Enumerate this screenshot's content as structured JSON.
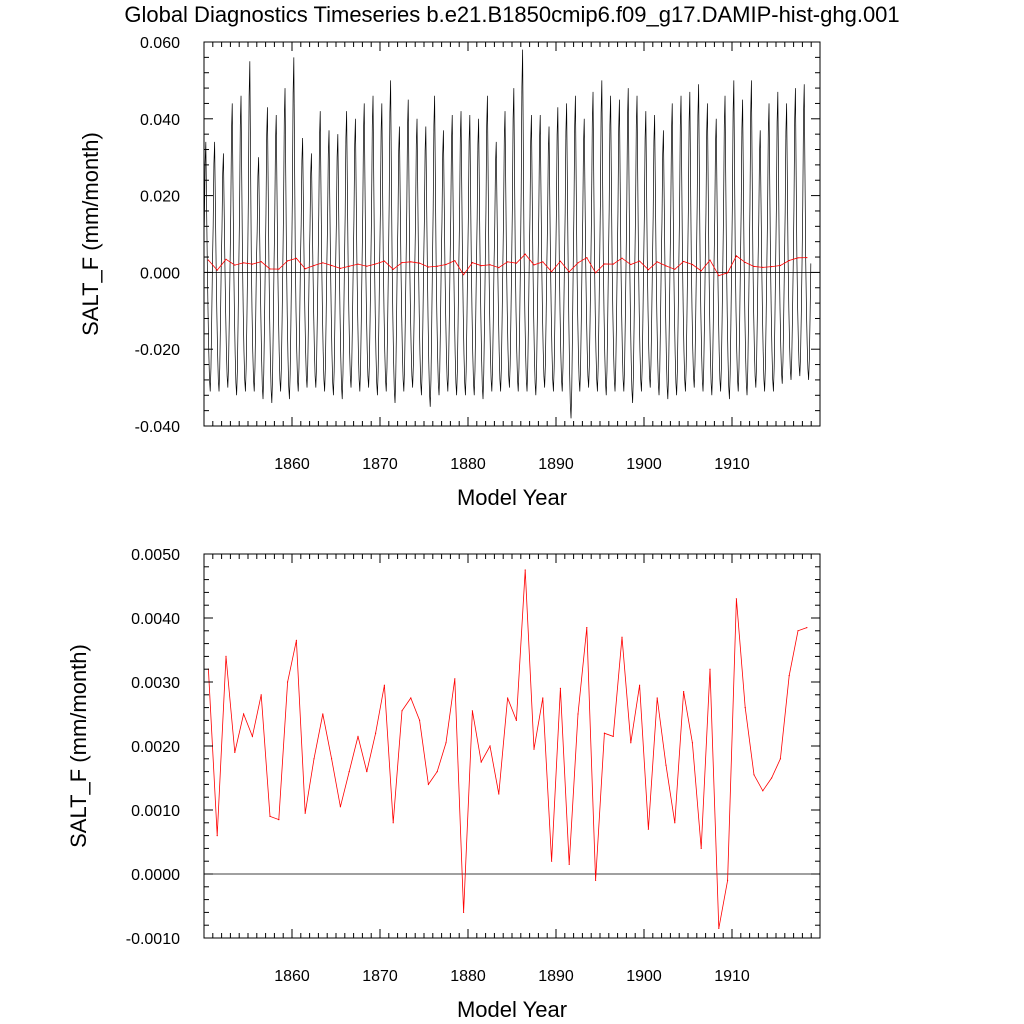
{
  "title": "Global Diagnostics Timeseries b.e21.B1850cmip6.f09_g17.DAMIP-hist-ghg.001",
  "chart_data": [
    {
      "type": "line",
      "xlabel": "Model Year",
      "ylabel": "SALT_F (mm/month)",
      "xlim": [
        1850,
        1920
      ],
      "ylim": [
        -0.04,
        0.06
      ],
      "xticks": [
        "1860",
        "1870",
        "1880",
        "1890",
        "1900",
        "1910"
      ],
      "xtick_values": [
        1860,
        1870,
        1880,
        1890,
        1900,
        1910
      ],
      "yticks": [
        "0.060",
        "0.040",
        "0.020",
        "0.000",
        "-0.020",
        "-0.040"
      ],
      "ytick_values": [
        0.06,
        0.04,
        0.02,
        0.0,
        -0.02,
        -0.04
      ],
      "zero_line": true,
      "monthly_series": {
        "color": "#000000",
        "start_year": 1850,
        "monthly_pattern": [
          0.015,
          0.035,
          0.042,
          0.022,
          0.003,
          -0.01,
          -0.02,
          -0.027,
          -0.03,
          -0.024,
          -0.012,
          0.002
        ],
        "annual_peaks": [
          0.034,
          0.034,
          0.031,
          0.044,
          0.046,
          0.055,
          0.03,
          0.043,
          0.041,
          0.048,
          0.056,
          0.035,
          0.031,
          0.042,
          0.037,
          0.036,
          0.042,
          0.04,
          0.044,
          0.046,
          0.044,
          0.05,
          0.038,
          0.045,
          0.04,
          0.038,
          0.046,
          0.037,
          0.041,
          0.042,
          0.041,
          0.04,
          0.046,
          0.034,
          0.042,
          0.048,
          0.058,
          0.041,
          0.041,
          0.038,
          0.043,
          0.044,
          0.046,
          0.04,
          0.047,
          0.05,
          0.046,
          0.045,
          0.048,
          0.046,
          0.042,
          0.041,
          0.037,
          0.044,
          0.046,
          0.047,
          0.049,
          0.044,
          0.04,
          0.046,
          0.05,
          0.045,
          0.05,
          0.037,
          0.044,
          0.047,
          0.044,
          0.048,
          0.049
        ],
        "annual_troughs": [
          -0.031,
          -0.031,
          -0.03,
          -0.032,
          -0.031,
          -0.031,
          -0.033,
          -0.034,
          -0.031,
          -0.033,
          -0.031,
          -0.03,
          -0.03,
          -0.031,
          -0.032,
          -0.033,
          -0.03,
          -0.031,
          -0.03,
          -0.032,
          -0.031,
          -0.034,
          -0.031,
          -0.03,
          -0.032,
          -0.035,
          -0.032,
          -0.031,
          -0.032,
          -0.032,
          -0.032,
          -0.033,
          -0.031,
          -0.031,
          -0.03,
          -0.031,
          -0.031,
          -0.032,
          -0.03,
          -0.031,
          -0.031,
          -0.038,
          -0.031,
          -0.03,
          -0.031,
          -0.032,
          -0.031,
          -0.031,
          -0.034,
          -0.031,
          -0.03,
          -0.032,
          -0.033,
          -0.032,
          -0.031,
          -0.03,
          -0.031,
          -0.032,
          -0.031,
          -0.033,
          -0.031,
          -0.032,
          -0.03,
          -0.031,
          -0.031,
          -0.029,
          -0.028,
          -0.027,
          -0.028
        ]
      },
      "series": [
        {
          "color": "#ff0000",
          "x": [
            1850.5,
            1851.5,
            1852.5,
            1853.5,
            1854.5,
            1855.5,
            1856.5,
            1857.5,
            1858.5,
            1859.5,
            1860.5,
            1861.5,
            1862.5,
            1863.5,
            1864.5,
            1865.5,
            1866.5,
            1867.5,
            1868.5,
            1869.5,
            1870.5,
            1871.5,
            1872.5,
            1873.5,
            1874.5,
            1875.5,
            1876.5,
            1877.5,
            1878.5,
            1879.5,
            1880.5,
            1881.5,
            1882.5,
            1883.5,
            1884.5,
            1885.5,
            1886.5,
            1887.5,
            1888.5,
            1889.5,
            1890.5,
            1891.5,
            1892.5,
            1893.5,
            1894.5,
            1895.5,
            1896.5,
            1897.5,
            1898.5,
            1899.5,
            1900.5,
            1901.5,
            1902.5,
            1903.5,
            1904.5,
            1905.5,
            1906.5,
            1907.5,
            1908.5,
            1909.5,
            1910.5,
            1911.5,
            1912.5,
            1913.5,
            1914.5,
            1915.5,
            1916.5,
            1917.5,
            1918.5
          ],
          "y": [
            0.0032,
            0.0006,
            0.0034,
            0.0019,
            0.0025,
            0.00215,
            0.0028,
            0.0009,
            0.00085,
            0.003,
            0.00365,
            0.00095,
            0.0018,
            0.0025,
            0.0018,
            0.00105,
            0.0016,
            0.00215,
            0.0016,
            0.0022,
            0.00295,
            0.0008,
            0.00255,
            0.00275,
            0.0024,
            0.0014,
            0.0016,
            0.00205,
            0.00305,
            -0.0006,
            0.00255,
            0.00175,
            0.002,
            0.00125,
            0.00275,
            0.0024,
            0.00475,
            0.00195,
            0.00275,
            0.0002,
            0.0029,
            0.00015,
            0.0025,
            0.00385,
            -0.0001,
            0.0022,
            0.00215,
            0.0037,
            0.00205,
            0.00295,
            0.0007,
            0.00275,
            0.0017,
            0.0008,
            0.00285,
            0.00205,
            0.0004,
            0.0032,
            -0.00085,
            -0.0001,
            0.0043,
            0.0026,
            0.00155,
            0.0013,
            0.0015,
            0.0018,
            0.0031,
            0.0038,
            0.00385
          ]
        }
      ]
    },
    {
      "type": "line",
      "xlabel": "Model Year",
      "ylabel": "SALT_F (mm/month)",
      "xlim": [
        1850,
        1920
      ],
      "ylim": [
        -0.001,
        0.005
      ],
      "xticks": [
        "1860",
        "1870",
        "1880",
        "1890",
        "1900",
        "1910"
      ],
      "xtick_values": [
        1860,
        1870,
        1880,
        1890,
        1900,
        1910
      ],
      "yticks": [
        "0.0050",
        "0.0040",
        "0.0030",
        "0.0020",
        "0.0010",
        "0.0000",
        "-0.0010"
      ],
      "ytick_values": [
        0.005,
        0.004,
        0.003,
        0.002,
        0.001,
        0.0,
        -0.001
      ],
      "zero_line": true,
      "series": [
        {
          "color": "#ff0000",
          "x": [
            1850.5,
            1851.5,
            1852.5,
            1853.5,
            1854.5,
            1855.5,
            1856.5,
            1857.5,
            1858.5,
            1859.5,
            1860.5,
            1861.5,
            1862.5,
            1863.5,
            1864.5,
            1865.5,
            1866.5,
            1867.5,
            1868.5,
            1869.5,
            1870.5,
            1871.5,
            1872.5,
            1873.5,
            1874.5,
            1875.5,
            1876.5,
            1877.5,
            1878.5,
            1879.5,
            1880.5,
            1881.5,
            1882.5,
            1883.5,
            1884.5,
            1885.5,
            1886.5,
            1887.5,
            1888.5,
            1889.5,
            1890.5,
            1891.5,
            1892.5,
            1893.5,
            1894.5,
            1895.5,
            1896.5,
            1897.5,
            1898.5,
            1899.5,
            1900.5,
            1901.5,
            1902.5,
            1903.5,
            1904.5,
            1905.5,
            1906.5,
            1907.5,
            1908.5,
            1909.5,
            1910.5,
            1911.5,
            1912.5,
            1913.5,
            1914.5,
            1915.5,
            1916.5,
            1917.5,
            1918.5
          ],
          "y": [
            0.0032,
            0.0006,
            0.0034,
            0.0019,
            0.0025,
            0.00215,
            0.0028,
            0.0009,
            0.00085,
            0.003,
            0.00365,
            0.00095,
            0.0018,
            0.0025,
            0.0018,
            0.00105,
            0.0016,
            0.00215,
            0.0016,
            0.0022,
            0.00295,
            0.0008,
            0.00255,
            0.00275,
            0.0024,
            0.0014,
            0.0016,
            0.00205,
            0.00305,
            -0.0006,
            0.00255,
            0.00175,
            0.002,
            0.00125,
            0.00275,
            0.0024,
            0.00475,
            0.00195,
            0.00275,
            0.0002,
            0.0029,
            0.00015,
            0.0025,
            0.00385,
            -0.0001,
            0.0022,
            0.00215,
            0.0037,
            0.00205,
            0.00295,
            0.0007,
            0.00275,
            0.0017,
            0.0008,
            0.00285,
            0.00205,
            0.0004,
            0.0032,
            -0.00085,
            -0.0001,
            0.0043,
            0.0026,
            0.00155,
            0.0013,
            0.0015,
            0.0018,
            0.0031,
            0.0038,
            0.00385
          ]
        }
      ]
    }
  ]
}
